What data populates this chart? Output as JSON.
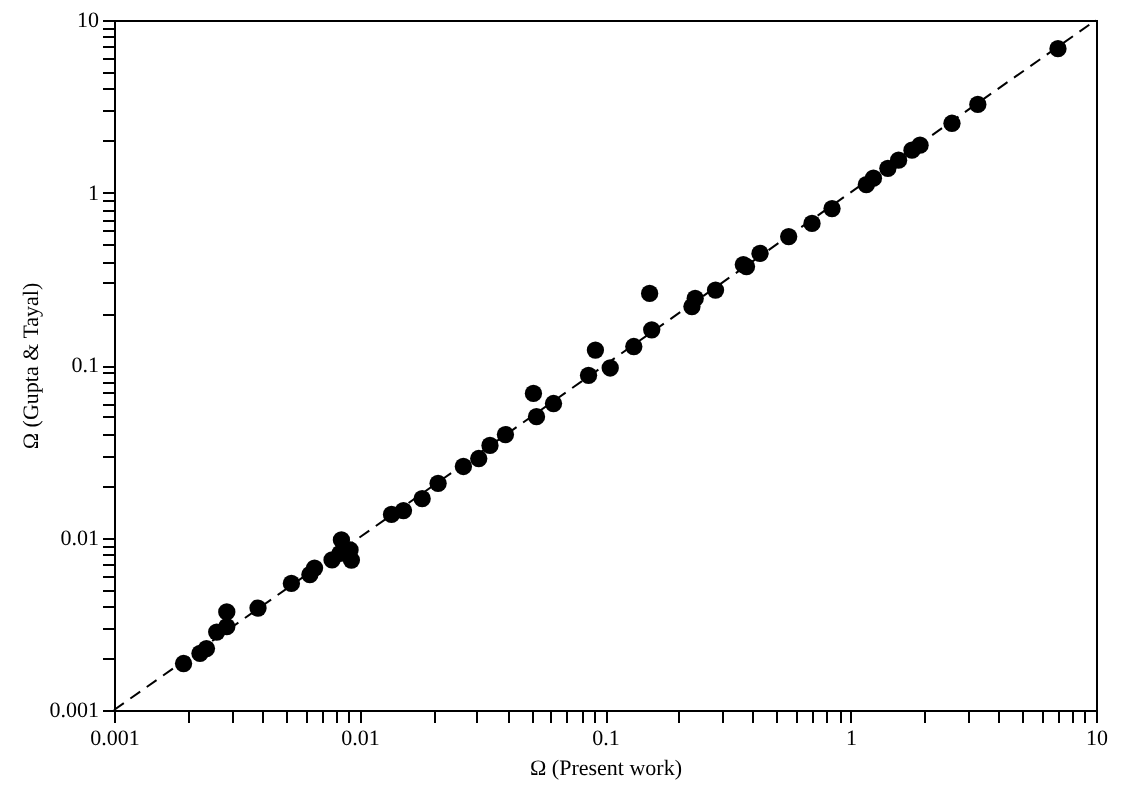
{
  "chart_data": {
    "type": "scatter",
    "xlabel": "Ω (Present work)",
    "ylabel": "Ω (Gupta & Tayal)",
    "log": "xy",
    "grid": false,
    "marker": "circle",
    "xlim": [
      0.001,
      10
    ],
    "ylim": [
      0.001,
      10
    ],
    "xticks": [
      0.001,
      {
        "value": 0.002,
        "label": null
      },
      {
        "value": 0.003,
        "label": null
      },
      {
        "value": 0.004,
        "label": null
      },
      {
        "value": 0.005,
        "label": null
      },
      {
        "value": 0.006,
        "label": null
      },
      {
        "value": 0.007,
        "label": null
      },
      {
        "value": 0.008,
        "label": null
      },
      {
        "value": 0.009,
        "label": null
      },
      0.01,
      {
        "value": 0.02,
        "label": null
      },
      {
        "value": 0.03,
        "label": null
      },
      {
        "value": 0.04,
        "label": null
      },
      {
        "value": 0.05,
        "label": null
      },
      {
        "value": 0.06,
        "label": null
      },
      {
        "value": 0.07,
        "label": null
      },
      {
        "value": 0.08,
        "label": null
      },
      {
        "value": 0.09,
        "label": null
      },
      0.1,
      {
        "value": 0.2,
        "label": null
      },
      {
        "value": 0.3,
        "label": null
      },
      {
        "value": 0.4,
        "label": null
      },
      {
        "value": 0.5,
        "label": null
      },
      {
        "value": 0.6,
        "label": null
      },
      {
        "value": 0.7,
        "label": null
      },
      {
        "value": 0.8,
        "label": null
      },
      {
        "value": 0.9,
        "label": null
      },
      1,
      {
        "value": 2,
        "label": null
      },
      {
        "value": 3,
        "label": null
      },
      {
        "value": 4,
        "label": null
      },
      {
        "value": 5,
        "label": null
      },
      {
        "value": 6,
        "label": null
      },
      {
        "value": 7,
        "label": null
      },
      {
        "value": 8,
        "label": null
      },
      {
        "value": 9,
        "label": null
      },
      10
    ],
    "yticks": [
      0.001,
      {
        "value": 0.002,
        "label": null
      },
      {
        "value": 0.003,
        "label": null
      },
      {
        "value": 0.004,
        "label": null
      },
      {
        "value": 0.005,
        "label": null
      },
      {
        "value": 0.006,
        "label": null
      },
      {
        "value": 0.007,
        "label": null
      },
      {
        "value": 0.008,
        "label": null
      },
      {
        "value": 0.009,
        "label": null
      },
      0.01,
      {
        "value": 0.02,
        "label": null
      },
      {
        "value": 0.03,
        "label": null
      },
      {
        "value": 0.04,
        "label": null
      },
      {
        "value": 0.05,
        "label": null
      },
      {
        "value": 0.06,
        "label": null
      },
      {
        "value": 0.07,
        "label": null
      },
      {
        "value": 0.08,
        "label": null
      },
      {
        "value": 0.09,
        "label": null
      },
      0.1,
      {
        "value": 0.2,
        "label": null
      },
      {
        "value": 0.3,
        "label": null
      },
      {
        "value": 0.4,
        "label": null
      },
      {
        "value": 0.5,
        "label": null
      },
      {
        "value": 0.6,
        "label": null
      },
      {
        "value": 0.7,
        "label": null
      },
      {
        "value": 0.8,
        "label": null
      },
      {
        "value": 0.9,
        "label": null
      },
      1,
      {
        "value": 2,
        "label": null
      },
      {
        "value": 3,
        "label": null
      },
      {
        "value": 4,
        "label": null
      },
      {
        "value": 5,
        "label": null
      },
      {
        "value": 6,
        "label": null
      },
      {
        "value": 7,
        "label": null
      },
      {
        "value": 8,
        "label": null
      },
      {
        "value": 9,
        "label": null
      },
      10
    ],
    "series": [
      {
        "color": "#000000",
        "x": [
          0.00192,
          0.00224,
          0.00238,
          0.00262,
          0.00288,
          0.00288,
          0.00386,
          0.00528,
          0.00628,
          0.00656,
          0.00773,
          0.00844,
          0.00833,
          0.00915,
          0.00927,
          0.0135,
          0.0151,
          0.018,
          0.0209,
          0.0265,
          0.0306,
          0.034,
          0.0393,
          0.0511,
          0.0526,
          0.0617,
          0.0857,
          0.0914,
          0.105,
          0.131,
          0.152,
          0.155,
          0.226,
          0.233,
          0.282,
          0.366,
          0.377,
          0.428,
          0.56,
          0.697,
          0.841,
          1.16,
          1.24,
          1.42,
          1.57,
          1.78,
          1.92,
          2.59,
          3.3,
          7.0
        ],
        "values": [
          0.00186,
          0.00213,
          0.00227,
          0.00283,
          0.00304,
          0.0037,
          0.0039,
          0.00542,
          0.0061,
          0.00665,
          0.00741,
          0.00968,
          0.00809,
          0.00847,
          0.0074,
          0.0136,
          0.0143,
          0.0168,
          0.0206,
          0.0258,
          0.0287,
          0.0342,
          0.0395,
          0.0684,
          0.0502,
          0.0598,
          0.0871,
          0.122,
          0.0961,
          0.128,
          0.26,
          0.16,
          0.218,
          0.243,
          0.272,
          0.382,
          0.372,
          0.444,
          0.555,
          0.662,
          0.807,
          1.11,
          1.21,
          1.38,
          1.54,
          1.76,
          1.88,
          2.52,
          3.24,
          6.82
        ]
      },
      {
        "type": "line",
        "color": "#000000",
        "line_style": "dashed",
        "marker": "none",
        "x": [
          0.001,
          10
        ],
        "values": [
          0.001,
          10
        ]
      }
    ]
  }
}
